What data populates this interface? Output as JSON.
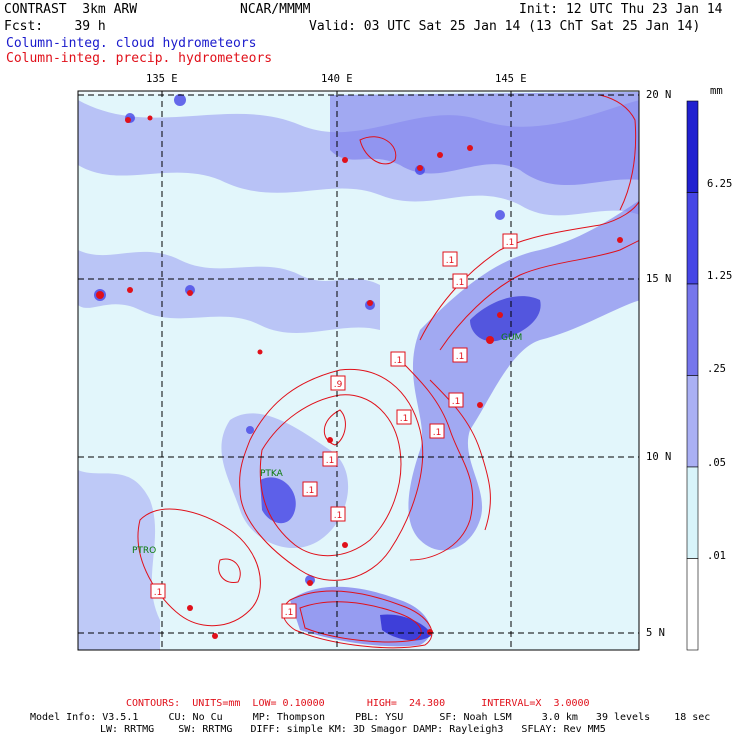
{
  "header": {
    "model": "CONTRAST",
    "resolution": "3km ARW",
    "org": "NCAR/MMMM",
    "init": "Init: 12 UTC Thu 23 Jan 14",
    "fcst_label": "Fcst:",
    "fcst_value": "39 h",
    "valid": "Valid: 03 UTC Sat 25 Jan 14 (13 ChT Sat 25 Jan 14)",
    "field1": "Column-integ. cloud hydrometeors",
    "field2": "Column-integ. precip. hydrometeors"
  },
  "map": {
    "lon_labels": [
      "135 E",
      "140 E",
      "145 E"
    ],
    "lat_labels": [
      "20 N",
      "15 N",
      "10 N",
      "5 N"
    ],
    "stations": [
      {
        "name": "GUM"
      },
      {
        "name": "PTKA"
      },
      {
        "name": "PTRO"
      }
    ],
    "contour_labels": [
      ".1",
      ".1",
      ".1",
      ".1",
      ".1",
      ".9",
      ".1",
      ".1",
      ".1",
      ".1",
      ".1",
      ".1",
      ".1",
      ".1"
    ]
  },
  "colorbar": {
    "unit": "mm",
    "levels": [
      "6.25",
      "1.25",
      ".25",
      ".05",
      ".01"
    ],
    "colors": [
      "#2020d0",
      "#4646e6",
      "#7676ec",
      "#aab0f4",
      "#d8f4fa",
      "#ffffff"
    ]
  },
  "footer": {
    "contours": "CONTOURS:  UNITS=mm  LOW= 0.10000       HIGH=  24.300      INTERVAL=X  3.0000",
    "info1": "Model Info: V3.5.1     CU: No Cu     MP: Thompson     PBL: YSU      SF: Noah LSM     3.0 km   39 levels    18 sec",
    "info2": "LW: RRTMG    SW: RRTMG   DIFF: simple KM: 3D Smagor DAMP: Rayleigh3   SFLAY: Rev MM5"
  }
}
